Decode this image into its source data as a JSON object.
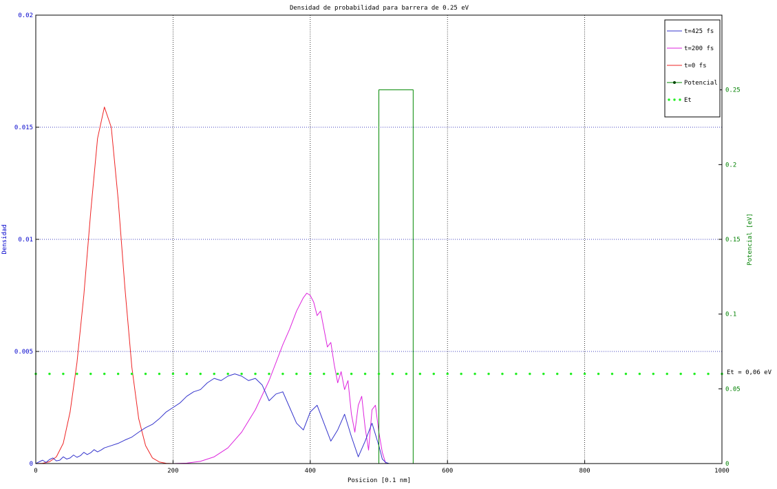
{
  "chart_data": {
    "type": "line",
    "title": "Densidad de probabilidad para barrera de 0.25 eV",
    "xlabel": "Posicion [0.1 nm]",
    "ylabel": "Densidad",
    "y2label": "Potencial [eV]",
    "xlim": [
      0,
      1000
    ],
    "ylim": [
      0,
      0.02
    ],
    "y2lim": [
      0,
      0.3
    ],
    "xticks": [
      "0",
      "200",
      "400",
      "600",
      "800",
      "1000"
    ],
    "yticks": [
      "0",
      "0.005",
      "0.01",
      "0.015",
      "0.02"
    ],
    "y2ticks": [
      "0",
      "0.05",
      "0.1",
      "0.15",
      "0.2",
      "0.25"
    ],
    "grid": true,
    "legend_position": "top-right",
    "annotation": "Et = 0,06 eV",
    "colors": {
      "left_axis": "#0000cc",
      "right_axis": "#008000",
      "t425": "#3333cc",
      "t200": "#dd22dd",
      "t0": "#ee2222",
      "potencial": "#008800",
      "et": "#22ee22"
    },
    "series": [
      {
        "name": "t=425 fs",
        "axis": "left",
        "x": [
          0,
          5,
          10,
          15,
          20,
          25,
          30,
          35,
          40,
          45,
          50,
          55,
          60,
          65,
          70,
          75,
          80,
          85,
          90,
          95,
          100,
          110,
          120,
          130,
          140,
          150,
          160,
          170,
          180,
          190,
          200,
          210,
          220,
          230,
          240,
          250,
          260,
          270,
          280,
          290,
          300,
          310,
          320,
          330,
          340,
          350,
          360,
          370,
          380,
          390,
          400,
          410,
          420,
          430,
          440,
          450,
          460,
          470,
          480,
          490,
          500,
          505,
          510,
          515
        ],
        "values": [
          0,
          8e-05,
          0.00015,
          5e-05,
          0.00018,
          0.00025,
          0.00012,
          0.00015,
          0.0003,
          0.0002,
          0.00025,
          0.00038,
          0.00028,
          0.00035,
          0.0005,
          0.0004,
          0.00048,
          0.00062,
          0.00052,
          0.0006,
          0.0007,
          0.0008,
          0.0009,
          0.00105,
          0.00118,
          0.0014,
          0.0016,
          0.00175,
          0.002,
          0.0023,
          0.0025,
          0.0027,
          0.003,
          0.0032,
          0.0033,
          0.0036,
          0.0038,
          0.0037,
          0.0039,
          0.004,
          0.0039,
          0.0037,
          0.0038,
          0.0035,
          0.0028,
          0.0031,
          0.0032,
          0.0025,
          0.0018,
          0.0015,
          0.0023,
          0.0026,
          0.0018,
          0.001,
          0.0015,
          0.0022,
          0.0012,
          0.0003,
          0.001,
          0.0018,
          0.0008,
          0.0002,
          5e-05,
          0
        ]
      },
      {
        "name": "t=200 fs",
        "axis": "left",
        "x": [
          0,
          200,
          220,
          240,
          260,
          280,
          300,
          320,
          340,
          360,
          370,
          380,
          390,
          395,
          400,
          405,
          410,
          415,
          420,
          425,
          430,
          435,
          440,
          445,
          450,
          455,
          460,
          465,
          470,
          475,
          480,
          485,
          490,
          495,
          500,
          505,
          510
        ],
        "values": [
          0,
          0,
          2e-05,
          0.0001,
          0.0003,
          0.0007,
          0.0014,
          0.0024,
          0.0037,
          0.0053,
          0.006,
          0.0068,
          0.0074,
          0.0076,
          0.0075,
          0.0072,
          0.0066,
          0.0068,
          0.006,
          0.0052,
          0.0054,
          0.0044,
          0.0036,
          0.0041,
          0.0033,
          0.0037,
          0.0022,
          0.0014,
          0.0026,
          0.003,
          0.0016,
          0.0006,
          0.0024,
          0.0026,
          0.0014,
          0.0005,
          0
        ]
      },
      {
        "name": "t=0 fs",
        "axis": "left",
        "x": [
          0,
          10,
          20,
          30,
          40,
          50,
          60,
          70,
          80,
          90,
          100,
          110,
          120,
          130,
          140,
          150,
          160,
          170,
          180,
          190,
          200
        ],
        "values": [
          0,
          1e-05,
          8e-05,
          0.0003,
          0.0009,
          0.0023,
          0.0045,
          0.0075,
          0.0112,
          0.0145,
          0.0159,
          0.015,
          0.0118,
          0.0078,
          0.0043,
          0.002,
          0.0008,
          0.00025,
          7e-05,
          1e-05,
          0
        ]
      },
      {
        "name": "Potencial",
        "axis": "right",
        "x": [
          0,
          500,
          500,
          550,
          550,
          1000
        ],
        "values": [
          0,
          0,
          0.25,
          0.25,
          0,
          0
        ]
      },
      {
        "name": "Et",
        "axis": "right",
        "x": [
          0,
          1000
        ],
        "values": [
          0.06,
          0.06
        ]
      }
    ]
  }
}
